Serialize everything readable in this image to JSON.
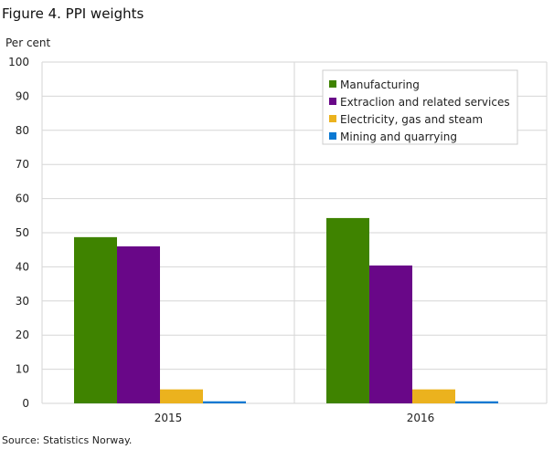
{
  "title": "Figure 4. PPI weights",
  "source": "Source: Statistics Norway.",
  "chart_data": {
    "type": "bar",
    "title": "Figure 4. PPI weights",
    "ylabel": "Per cent",
    "xlabel": "",
    "ylim": [
      0,
      100
    ],
    "yticks": [
      "0",
      "10",
      "20",
      "30",
      "40",
      "50",
      "60",
      "70",
      "80",
      "90",
      "100"
    ],
    "categories": [
      "2015",
      "2016"
    ],
    "grid": true,
    "legend_position": "top-right",
    "series": [
      {
        "name": "Manufacturing",
        "color": "#3f8300",
        "values": [
          48.7,
          54.3
        ]
      },
      {
        "name": "Extraclion and related services",
        "color": "#690788",
        "values": [
          46.0,
          40.4
        ]
      },
      {
        "name": "Electricity, gas and steam",
        "color": "#ebb21e",
        "values": [
          4.1,
          4.1
        ]
      },
      {
        "name": "Mining and quarrying",
        "color": "#0a78d2",
        "values": [
          0.6,
          0.6
        ]
      }
    ]
  }
}
